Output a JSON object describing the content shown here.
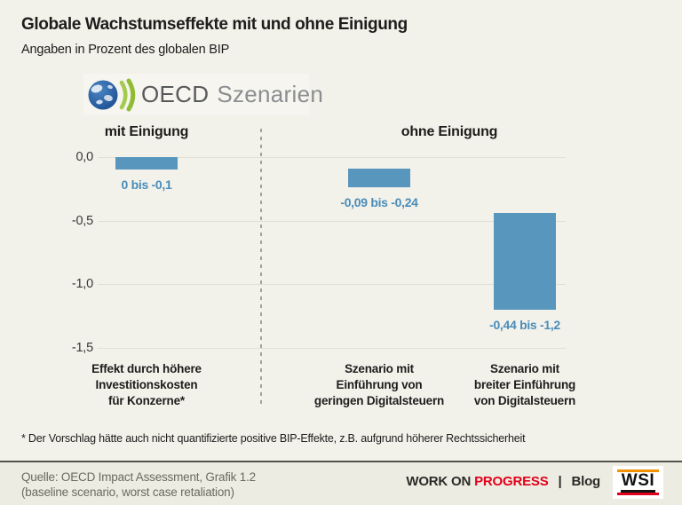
{
  "header": {
    "title": "Globale Wachstumseffekte mit und ohne Einigung",
    "subtitle": "Angaben in Prozent des globalen BIP"
  },
  "logo": {
    "oecd": "OECD",
    "szenarien": "Szenarien"
  },
  "chart_data": {
    "type": "bar",
    "title": "Globale Wachstumseffekte mit und ohne Einigung",
    "subtitle": "Angaben in Prozent des globalen BIP",
    "ylabel": "Prozent des globalen BIP",
    "ylim": [
      0,
      -1.5
    ],
    "grid": true,
    "bar_color": "#5996bd",
    "value_label_color": "#4a8db9",
    "y_ticks": [
      {
        "value": 0,
        "label": "0,0"
      },
      {
        "value": -0.5,
        "label": "-0,5"
      },
      {
        "value": -1.0,
        "label": "-1,0"
      },
      {
        "value": -1.5,
        "label": "-1,5"
      }
    ],
    "groups": [
      {
        "header": "mit Einigung",
        "bars": [
          {
            "range": [
              0,
              -0.1
            ],
            "value_label": "0 bis -0,1",
            "category_lines": [
              "Effekt durch höhere",
              "Investitionskosten",
              "für Konzerne*"
            ]
          }
        ]
      },
      {
        "header": "ohne Einigung",
        "bars": [
          {
            "range": [
              -0.09,
              -0.24
            ],
            "value_label": "-0,09 bis -0,24",
            "category_lines": [
              "Szenario mit",
              "Einführung von",
              "geringen Digitalsteuern"
            ]
          },
          {
            "range": [
              -0.44,
              -1.2
            ],
            "value_label": "-0,44 bis -1,2",
            "category_lines": [
              "Szenario mit",
              "breiter Einführung",
              "von Digitalsteuern"
            ]
          }
        ]
      }
    ]
  },
  "footnote": "* Der Vorschlag hätte auch nicht quantifizierte positive BIP-Effekte, z.B. aufgrund höherer Rechtssicherheit",
  "footer": {
    "source_line1": "Quelle: OECD Impact Assessment, Grafik 1.2",
    "source_line2": "(baseline scenario, worst case retaliation)",
    "work_on": "WORK ON",
    "progress": "PROGRESS",
    "pipe": "|",
    "blog": "Blog",
    "wsi": "WSI",
    "progress_color": "#e2001a"
  }
}
